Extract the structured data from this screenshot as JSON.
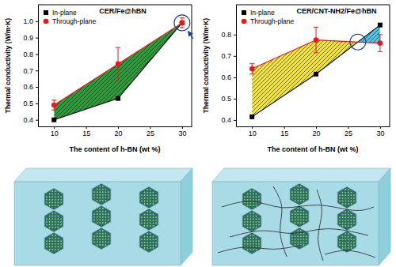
{
  "chart_data": [
    {
      "type": "line",
      "title": "CER/Fe@hBN",
      "x_label": "The content of h-BN (wt %)",
      "y_label": "Thermal conductivity (W/m·K)",
      "x": [
        10,
        20,
        30
      ],
      "series": [
        {
          "name": "In-plane",
          "color": "#000000",
          "marker": "square",
          "values": [
            0.4,
            0.53,
            0.99
          ]
        },
        {
          "name": "Through-plane",
          "color": "#e8191c",
          "marker": "circle",
          "values": [
            0.49,
            0.74,
            0.99
          ],
          "errors": [
            0.03,
            0.1,
            0.03
          ]
        }
      ],
      "xlim": [
        7.5,
        31.5
      ],
      "xticks": [
        10,
        15,
        20,
        25,
        30
      ],
      "ylim": [
        0.36,
        1.1
      ],
      "yticks": [
        0.4,
        0.5,
        0.6,
        0.7,
        0.8,
        0.9,
        {
          "value": 1,
          "label": "1.0"
        }
      ],
      "legend": "upper left"
    },
    {
      "type": "line",
      "title": "CER/CNT-NH2/Fe@hBN",
      "x_label": "The content of h-BN (wt %)",
      "y_label": "Thermal conductivity (W/m·K)",
      "x": [
        10,
        20,
        30
      ],
      "series": [
        {
          "name": "In-plane",
          "color": "#000000",
          "marker": "square",
          "values": [
            0.415,
            0.615,
            0.845
          ]
        },
        {
          "name": "Through-plane",
          "color": "#e8191c",
          "marker": "circle",
          "values": [
            0.64,
            0.775,
            0.76
          ],
          "errors": [
            0.025,
            0.06,
            0.04
          ]
        }
      ],
      "xlim": [
        7.5,
        31.5
      ],
      "xticks": [
        10,
        15,
        20,
        25,
        30
      ],
      "ylim": [
        0.37,
        0.94
      ],
      "yticks": [
        0.4,
        0.5,
        0.6,
        0.7,
        0.8
      ],
      "legend": "upper left"
    }
  ]
}
